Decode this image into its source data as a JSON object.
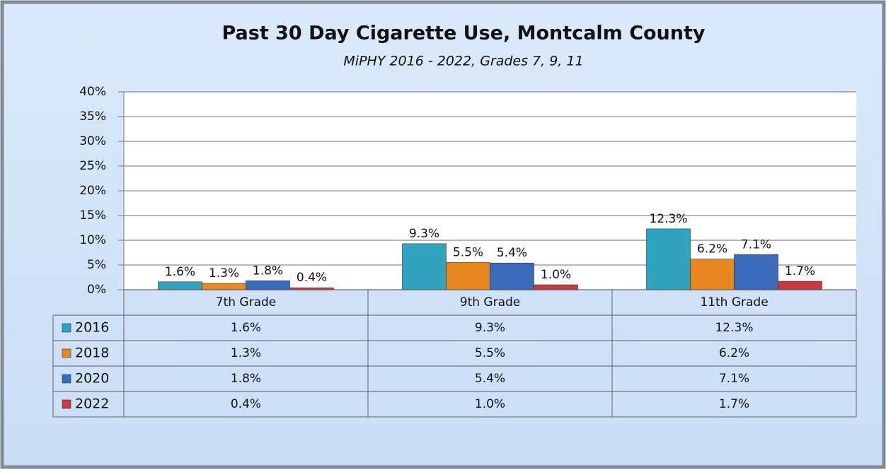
{
  "chart_data": {
    "type": "bar",
    "title": "Past 30 Day Cigarette Use, Montcalm County",
    "subtitle": "MiPHY 2016 - 2022, Grades 7, 9, 11",
    "categories": [
      "7th Grade",
      "9th Grade",
      "11th Grade"
    ],
    "series": [
      {
        "name": "2016",
        "color": "#2fa3c0",
        "values": [
          1.6,
          9.3,
          12.3
        ],
        "value_labels": [
          "1.6%",
          "9.3%",
          "12.3%"
        ]
      },
      {
        "name": "2018",
        "color": "#e8871e",
        "values": [
          1.3,
          5.5,
          6.2
        ],
        "value_labels": [
          "1.3%",
          "5.5%",
          "6.2%"
        ]
      },
      {
        "name": "2020",
        "color": "#3a6bbd",
        "values": [
          1.8,
          5.4,
          7.1
        ],
        "value_labels": [
          "1.8%",
          "5.4%",
          "7.1%"
        ]
      },
      {
        "name": "2022",
        "color": "#cc3b3b",
        "values": [
          0.4,
          1.0,
          1.7
        ],
        "value_labels": [
          "0.4%",
          "1.0%",
          "1.7%"
        ]
      }
    ],
    "ylim": [
      0,
      40
    ],
    "yticks": [
      {
        "value": 0,
        "label": "0%"
      },
      {
        "value": 5,
        "label": "5%"
      },
      {
        "value": 10,
        "label": "10%"
      },
      {
        "value": 15,
        "label": "15%"
      },
      {
        "value": 20,
        "label": "20%"
      },
      {
        "value": 25,
        "label": "25%"
      },
      {
        "value": 30,
        "label": "30%"
      },
      {
        "value": 35,
        "label": "35%"
      },
      {
        "value": 40,
        "label": "40%"
      }
    ],
    "grid": true
  }
}
